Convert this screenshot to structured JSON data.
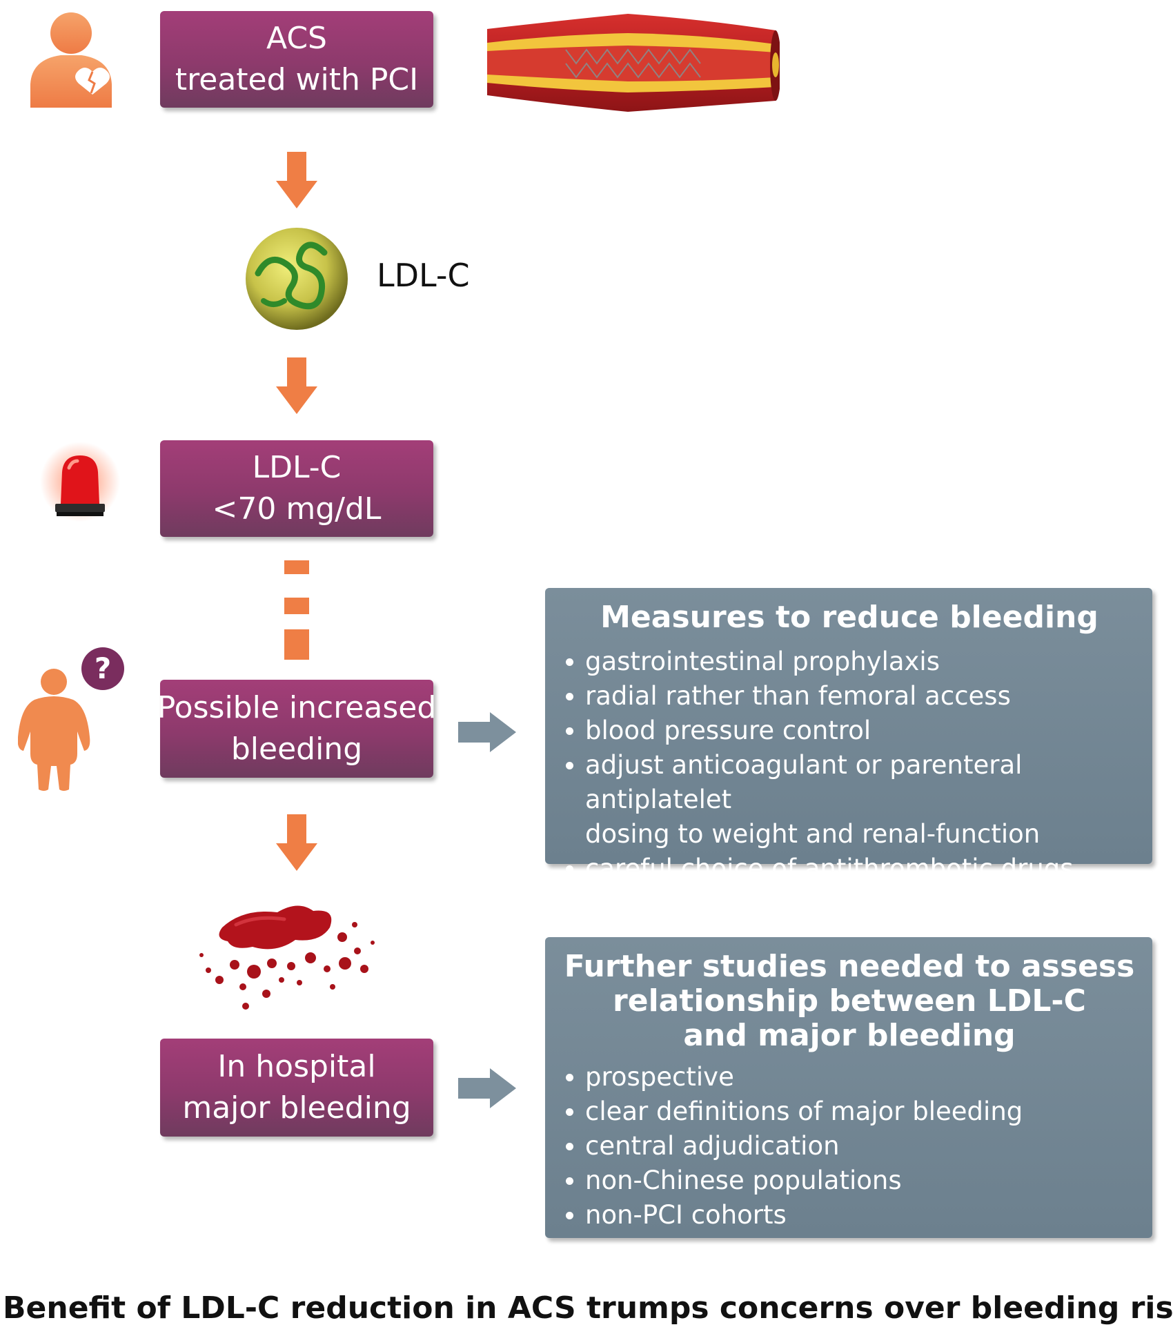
{
  "flow": {
    "box_acs": {
      "line1": "ACS",
      "line2": "treated with PCI"
    },
    "ldl_label": "LDL-C",
    "box_target": {
      "line1": "LDL-C",
      "line2": "<70 mg/dL"
    },
    "box_bleeding": {
      "line1": "Possible increased",
      "line2": "bleeding"
    },
    "box_major": {
      "line1": "In hospital",
      "line2": "major bleeding"
    }
  },
  "measures": {
    "title": "Measures to reduce bleeding",
    "items": [
      "gastrointestinal prophylaxis",
      "radial rather than femoral access",
      "blood pressure control",
      "adjust anticoagulant or parenteral antiplatelet",
      "careful choice of antithrombotic drugs"
    ],
    "item4_continuation": "dosing to weight and renal-function"
  },
  "studies": {
    "title_line1": "Further studies needed to assess",
    "title_line2": "relationship between LDL-C",
    "title_line3": "and major bleeding",
    "items": [
      "prospective",
      "clear definitions of major bleeding",
      "central adjudication",
      "non-Chinese populations",
      "non-PCI cohorts"
    ]
  },
  "question_mark": "?",
  "footer": "Benefit of LDL-C reduction in ACS trumps concerns over bleeding risk",
  "colors": {
    "process_box": "#8d3a6c",
    "info_box": "#74889a",
    "arrow_orange": "#ef7e45",
    "arrow_gray": "#7d909d",
    "question_badge": "#7a2d5e"
  }
}
